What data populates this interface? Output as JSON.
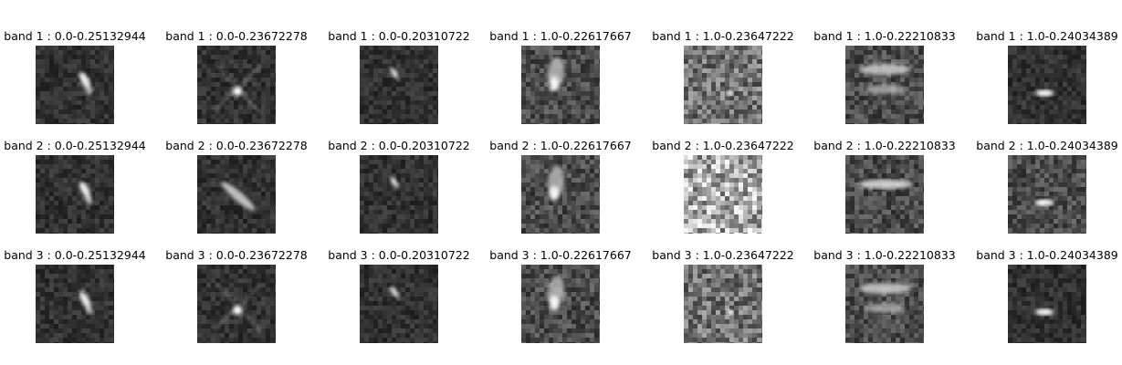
{
  "rows": [
    {
      "band": 1,
      "images": [
        {
          "title": "band 1 : 0.0-0.25132944",
          "icon": "noise-with-diagonal-streak",
          "tone": "dark",
          "shape": "diagonal-blob"
        },
        {
          "title": "band 1 : 0.0-0.23672278",
          "icon": "noise-with-cross-star",
          "tone": "dark",
          "shape": "cross-star"
        },
        {
          "title": "band 1 : 0.0-0.20310722",
          "icon": "noise-with-small-streak",
          "tone": "dark",
          "shape": "small-diagonal"
        },
        {
          "title": "band 1 : 1.0-0.22617667",
          "icon": "noise-with-vertical-glow",
          "tone": "mid",
          "shape": "vertical-glow"
        },
        {
          "title": "band 1 : 1.0-0.23647222",
          "icon": "noise-with-small-dot",
          "tone": "light",
          "shape": "small-dot"
        },
        {
          "title": "band 1 : 1.0-0.22210833",
          "icon": "noise-with-horizontal-bands",
          "tone": "mid",
          "shape": "horizontal-bands"
        },
        {
          "title": "band 1 : 1.0-0.24034389",
          "icon": "noise-with-horizontal-dot",
          "tone": "dark",
          "shape": "horizontal-dot"
        }
      ]
    },
    {
      "band": 2,
      "images": [
        {
          "title": "band 2 : 0.0-0.25132944",
          "icon": "noise-with-diagonal-streak",
          "tone": "dark",
          "shape": "diagonal-blob"
        },
        {
          "title": "band 2 : 0.0-0.23672278",
          "icon": "noise-with-diagonal-streak",
          "tone": "dark",
          "shape": "long-diagonal"
        },
        {
          "title": "band 2 : 0.0-0.20310722",
          "icon": "noise-with-small-streak",
          "tone": "dark",
          "shape": "small-diagonal"
        },
        {
          "title": "band 2 : 1.0-0.22617667",
          "icon": "noise-with-vertical-glow",
          "tone": "mid",
          "shape": "vertical-glow"
        },
        {
          "title": "band 2 : 1.0-0.23647222",
          "icon": "bright-noise",
          "tone": "bright",
          "shape": "none"
        },
        {
          "title": "band 2 : 1.0-0.22210833",
          "icon": "noise-with-horizontal-bands",
          "tone": "mid",
          "shape": "horizontal-band-top"
        },
        {
          "title": "band 2 : 1.0-0.24034389",
          "icon": "noise-with-horizontal-dot",
          "tone": "mid",
          "shape": "horizontal-dot"
        }
      ]
    },
    {
      "band": 3,
      "images": [
        {
          "title": "band 3 : 0.0-0.25132944",
          "icon": "noise-with-diagonal-streak",
          "tone": "dark",
          "shape": "diagonal-blob"
        },
        {
          "title": "band 3 : 0.0-0.23672278",
          "icon": "noise-with-cross-star",
          "tone": "dark",
          "shape": "cross-star"
        },
        {
          "title": "band 3 : 0.0-0.20310722",
          "icon": "noise-with-small-streak",
          "tone": "dark",
          "shape": "small-diagonal"
        },
        {
          "title": "band 3 : 1.0-0.22617667",
          "icon": "noise-with-vertical-glow",
          "tone": "mid",
          "shape": "vertical-glow"
        },
        {
          "title": "band 3 : 1.0-0.23647222",
          "icon": "noise-with-small-dot",
          "tone": "light",
          "shape": "small-dot"
        },
        {
          "title": "band 3 : 1.0-0.22210833",
          "icon": "noise-with-horizontal-bands",
          "tone": "mid",
          "shape": "horizontal-bands"
        },
        {
          "title": "band 3 : 1.0-0.24034389",
          "icon": "noise-with-horizontal-dot",
          "tone": "dark",
          "shape": "horizontal-dot"
        }
      ]
    }
  ]
}
